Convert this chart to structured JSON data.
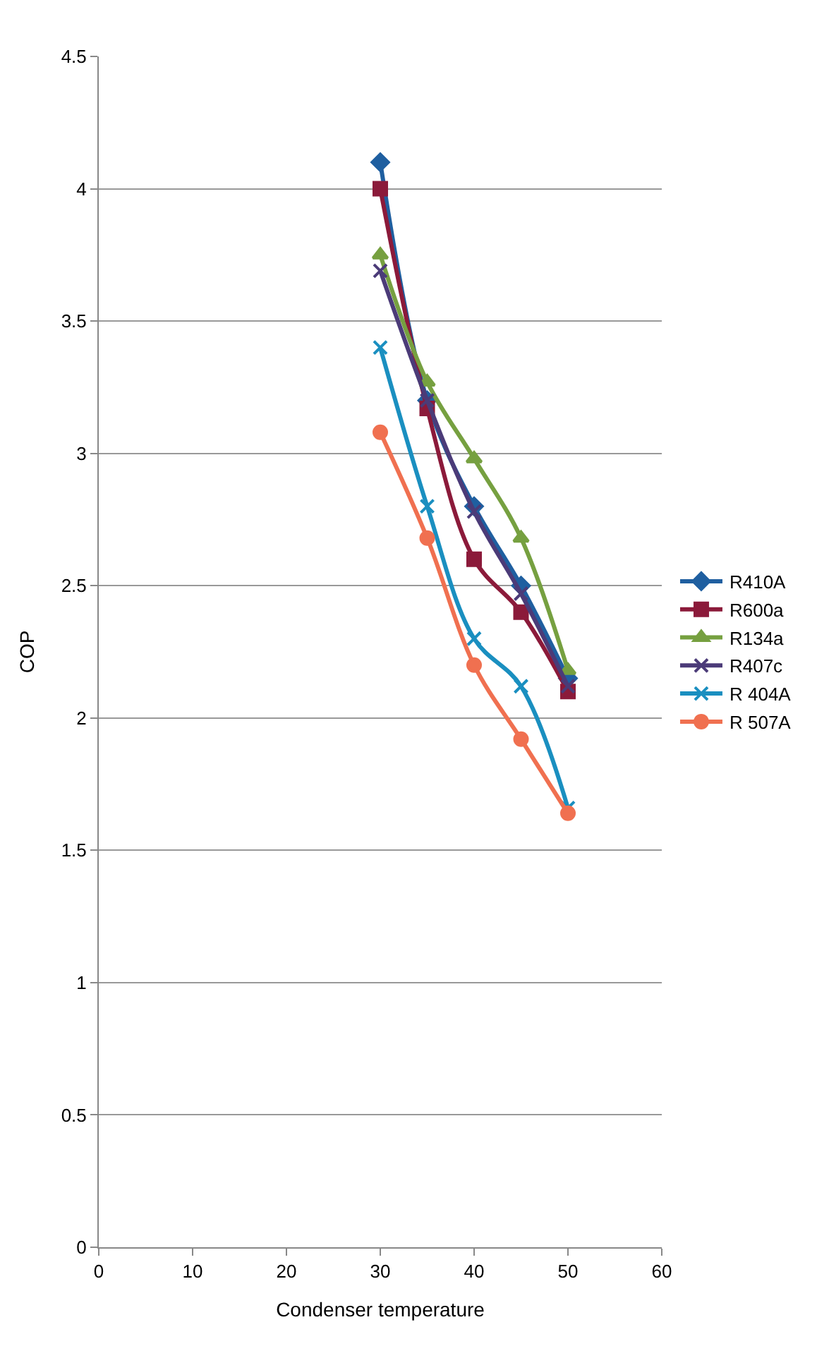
{
  "chart_data": {
    "type": "line",
    "xlabel": "Condenser temperature",
    "ylabel": "COP",
    "x": [
      30,
      35,
      40,
      45,
      50
    ],
    "series": [
      {
        "name": "R410A",
        "color": "#1f5fa0",
        "marker": "diamond",
        "values": [
          4.1,
          3.2,
          2.8,
          2.5,
          2.15
        ]
      },
      {
        "name": "R600a",
        "color": "#8b1a3a",
        "marker": "square",
        "values": [
          4.0,
          3.17,
          2.6,
          2.4,
          2.1
        ]
      },
      {
        "name": "R134a",
        "color": "#76a040",
        "marker": "triangle",
        "values": [
          3.75,
          3.27,
          2.98,
          2.68,
          2.18
        ]
      },
      {
        "name": "R407c",
        "color": "#4b3b78",
        "marker": "cross",
        "values": [
          3.69,
          3.2,
          2.78,
          2.47,
          2.12
        ]
      },
      {
        "name": "R 404A",
        "color": "#1a8fc0",
        "marker": "cross",
        "values": [
          3.4,
          2.8,
          2.3,
          2.12,
          1.66
        ]
      },
      {
        "name": "R 507A",
        "color": "#f07050",
        "marker": "circle",
        "values": [
          3.08,
          2.68,
          2.2,
          1.92,
          1.64
        ]
      }
    ],
    "xlim": [
      0,
      60
    ],
    "xticks": [
      0,
      10,
      20,
      30,
      40,
      50,
      60
    ],
    "ylim": [
      0,
      4.5
    ],
    "yticks": [
      0,
      0.5,
      1,
      1.5,
      2,
      2.5,
      3,
      3.5,
      4,
      4.5
    ],
    "grid": "y",
    "legend": "right",
    "line_style": "solid"
  }
}
